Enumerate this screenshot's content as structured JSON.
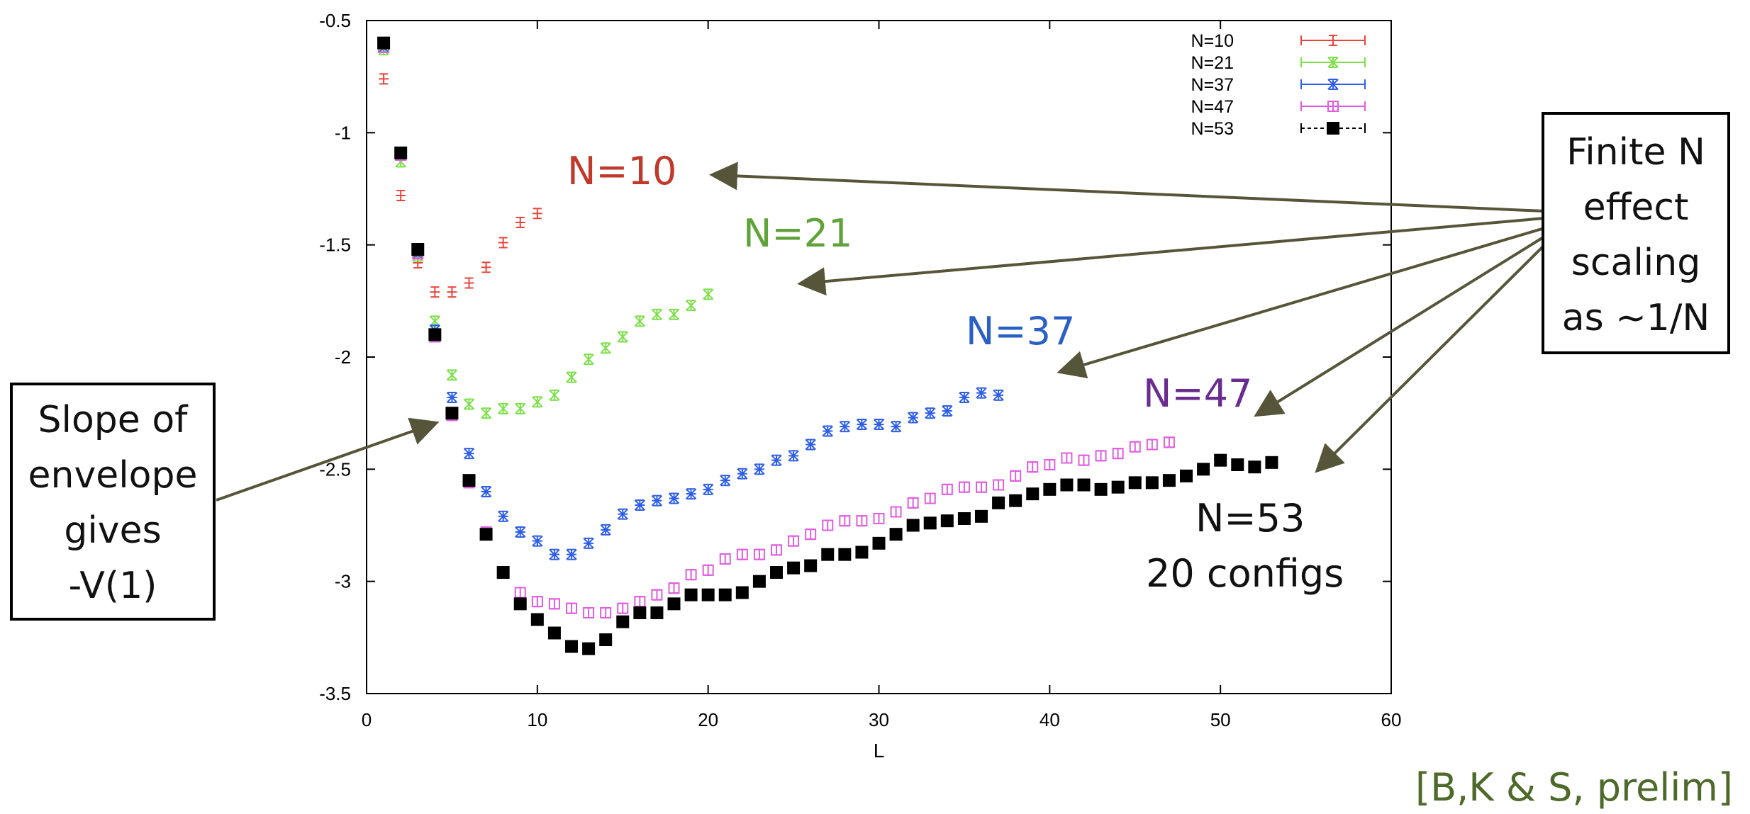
{
  "chart_data": {
    "type": "scatter",
    "xlabel": "L",
    "ylabel": "",
    "xlim": [
      0,
      60
    ],
    "ylim": [
      -3.5,
      -0.5
    ],
    "xticks": [
      0,
      10,
      20,
      30,
      40,
      50,
      60
    ],
    "xtick_labels": [
      "0",
      "10",
      "20",
      "30",
      "40",
      "50",
      "60"
    ],
    "yticks": [
      -0.5,
      -1,
      -1.5,
      -2,
      -2.5,
      -3,
      -3.5
    ],
    "ytick_labels": [
      "-0.5",
      "-1",
      "-1.5",
      "-2",
      "-2.5",
      "-3",
      "-3.5"
    ],
    "legend_position": "top-right",
    "series": [
      {
        "name": "N=10",
        "color": "#e8463c",
        "marker": "plus",
        "x": [
          1,
          2,
          3,
          4,
          5,
          6,
          7,
          8,
          9,
          10
        ],
        "y": [
          -0.76,
          -1.28,
          -1.58,
          -1.71,
          -1.71,
          -1.67,
          -1.6,
          -1.49,
          -1.4,
          -1.36
        ]
      },
      {
        "name": "N=21",
        "color": "#7de04a",
        "marker": "x",
        "x": [
          1,
          2,
          3,
          4,
          5,
          6,
          7,
          8,
          9,
          10,
          11,
          12,
          13,
          14,
          15,
          16,
          17,
          18,
          19,
          20
        ],
        "y": [
          -0.63,
          -1.13,
          -1.55,
          -1.84,
          -2.08,
          -2.21,
          -2.25,
          -2.23,
          -2.23,
          -2.2,
          -2.17,
          -2.09,
          -2.01,
          -1.96,
          -1.91,
          -1.84,
          -1.81,
          -1.81,
          -1.77,
          -1.72
        ]
      },
      {
        "name": "N=37",
        "color": "#2e5fe8",
        "marker": "star",
        "x": [
          1,
          2,
          3,
          4,
          5,
          6,
          7,
          8,
          9,
          10,
          11,
          12,
          13,
          14,
          15,
          16,
          17,
          18,
          19,
          20,
          21,
          22,
          23,
          24,
          25,
          26,
          27,
          28,
          29,
          30,
          31,
          32,
          33,
          34,
          35,
          36,
          37
        ],
        "y": [
          -0.62,
          -1.1,
          -1.53,
          -1.88,
          -2.18,
          -2.43,
          -2.6,
          -2.71,
          -2.78,
          -2.82,
          -2.88,
          -2.88,
          -2.83,
          -2.77,
          -2.7,
          -2.66,
          -2.64,
          -2.63,
          -2.61,
          -2.59,
          -2.55,
          -2.52,
          -2.5,
          -2.46,
          -2.44,
          -2.39,
          -2.33,
          -2.31,
          -2.3,
          -2.3,
          -2.31,
          -2.27,
          -2.25,
          -2.24,
          -2.18,
          -2.16,
          -2.17
        ]
      },
      {
        "name": "N=47",
        "color": "#e15ce0",
        "marker": "square-open",
        "x": [
          1,
          2,
          3,
          4,
          5,
          6,
          7,
          8,
          9,
          10,
          11,
          12,
          13,
          14,
          15,
          16,
          17,
          18,
          19,
          20,
          21,
          22,
          23,
          24,
          25,
          26,
          27,
          28,
          29,
          30,
          31,
          32,
          33,
          34,
          35,
          36,
          37,
          38,
          39,
          40,
          41,
          42,
          43,
          44,
          45,
          46,
          47
        ],
        "y": [
          -0.62,
          -1.1,
          -1.54,
          -1.91,
          -2.26,
          -2.56,
          -2.78,
          -2.96,
          -3.05,
          -3.09,
          -3.1,
          -3.12,
          -3.14,
          -3.14,
          -3.12,
          -3.09,
          -3.06,
          -3.03,
          -2.97,
          -2.95,
          -2.9,
          -2.88,
          -2.88,
          -2.86,
          -2.82,
          -2.79,
          -2.75,
          -2.73,
          -2.73,
          -2.72,
          -2.69,
          -2.65,
          -2.63,
          -2.59,
          -2.58,
          -2.58,
          -2.57,
          -2.53,
          -2.49,
          -2.48,
          -2.45,
          -2.46,
          -2.44,
          -2.43,
          -2.4,
          -2.39,
          -2.38
        ]
      },
      {
        "name": "N=53",
        "color": "#000000",
        "marker": "square-filled",
        "x": [
          1,
          2,
          3,
          4,
          5,
          6,
          7,
          8,
          9,
          10,
          11,
          12,
          13,
          14,
          15,
          16,
          17,
          18,
          19,
          20,
          21,
          22,
          23,
          24,
          25,
          26,
          27,
          28,
          29,
          30,
          31,
          32,
          33,
          34,
          35,
          36,
          37,
          38,
          39,
          40,
          41,
          42,
          43,
          44,
          45,
          46,
          47,
          48,
          49,
          50,
          51,
          52,
          53
        ],
        "y": [
          -0.6,
          -1.09,
          -1.52,
          -1.9,
          -2.25,
          -2.55,
          -2.79,
          -2.96,
          -3.1,
          -3.17,
          -3.23,
          -3.29,
          -3.3,
          -3.26,
          -3.18,
          -3.14,
          -3.14,
          -3.1,
          -3.06,
          -3.06,
          -3.06,
          -3.05,
          -3.0,
          -2.96,
          -2.94,
          -2.93,
          -2.88,
          -2.88,
          -2.87,
          -2.83,
          -2.79,
          -2.75,
          -2.74,
          -2.73,
          -2.72,
          -2.71,
          -2.65,
          -2.64,
          -2.61,
          -2.59,
          -2.57,
          -2.57,
          -2.59,
          -2.58,
          -2.56,
          -2.56,
          -2.55,
          -2.53,
          -2.5,
          -2.46,
          -2.48,
          -2.49,
          -2.47
        ]
      }
    ]
  },
  "annotations": {
    "left_box": [
      "Slope of",
      "envelope",
      "gives",
      "-V(1)"
    ],
    "right_box": [
      "Finite N",
      "effect",
      "scaling",
      "as ~1/N"
    ],
    "series_labels": [
      {
        "text": "N=10",
        "color": "#c0392b"
      },
      {
        "text": "N=21",
        "color": "#5fa33a"
      },
      {
        "text": "N=37",
        "color": "#2a5fc4"
      },
      {
        "text": "N=47",
        "color": "#6a2c8e"
      },
      {
        "text": "N=53",
        "color": "#111111"
      },
      {
        "text": "20 configs",
        "color": "#111111"
      }
    ],
    "citation": "[B,K & S, prelim]",
    "arrow_color": "#565539"
  }
}
